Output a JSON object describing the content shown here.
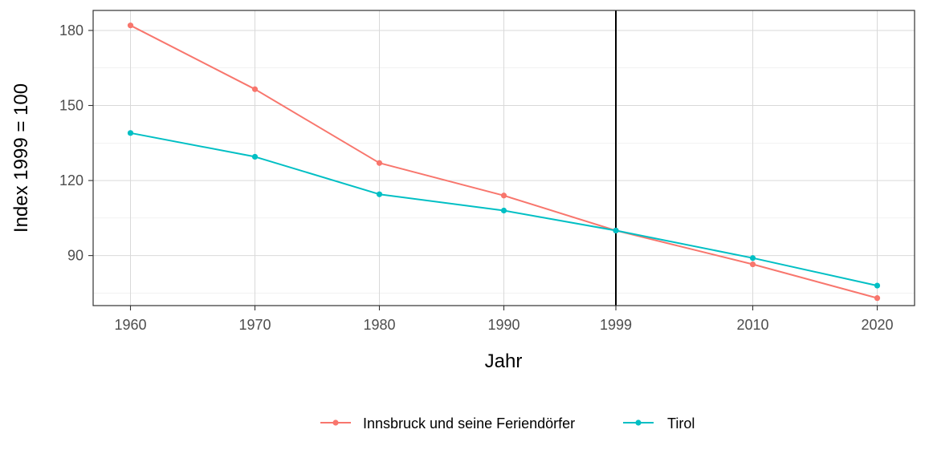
{
  "chart_data": {
    "type": "line",
    "x": [
      1960,
      1970,
      1980,
      1990,
      1999,
      2010,
      2020
    ],
    "x_tick_labels": [
      "1960",
      "1970",
      "1980",
      "1990",
      "1999",
      "2010",
      "2020"
    ],
    "xlim": [
      1957,
      2023
    ],
    "ylim": [
      70,
      188
    ],
    "y_ticks": [
      90,
      120,
      150,
      180
    ],
    "y_tick_labels": [
      "90",
      "120",
      "150",
      "180"
    ],
    "xlabel": "Jahr",
    "ylabel": "Index 1999 = 100",
    "reference_line_x": 1999,
    "grid": true,
    "legend_position": "bottom",
    "series": [
      {
        "name": "Innsbruck und seine Feriendörfer",
        "color": "#F8766D",
        "values": [
          182,
          156.5,
          127,
          114,
          100,
          86.5,
          73
        ]
      },
      {
        "name": "Tirol",
        "color": "#00BFC4",
        "values": [
          139,
          129.5,
          114.5,
          108,
          100,
          89,
          78
        ]
      }
    ]
  }
}
